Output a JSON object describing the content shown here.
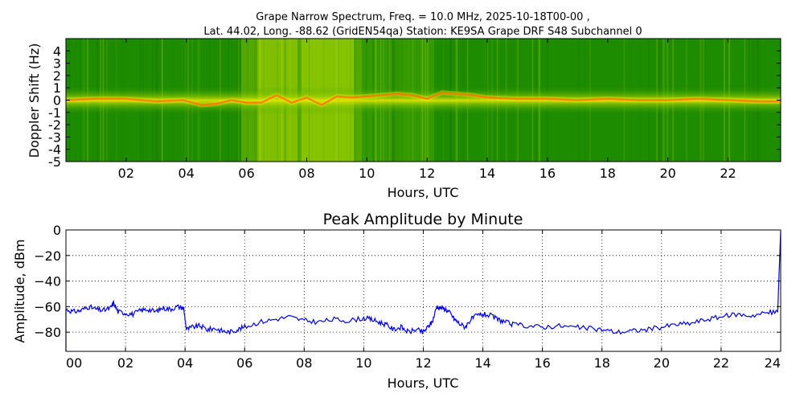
{
  "chart_data": [
    {
      "type": "heatmap",
      "title_line1": "Grape Narrow Spectrum, Freq. = 10.0 MHz, 2025-10-18T00-00 ,",
      "title_line2": "Lat.  44.02, Long. -88.62 (GridEN54qa) Station: KE9SA Grape DRF S48 Subchannel 0",
      "xlabel": "Hours, UTC",
      "ylabel": "Doppler Shift (Hz)",
      "xlim": [
        0,
        23.75
      ],
      "ylim": [
        -5,
        5
      ],
      "xticks": [
        "02",
        "04",
        "06",
        "08",
        "10",
        "12",
        "14",
        "16",
        "18",
        "20",
        "22"
      ],
      "xtick_values": [
        2,
        4,
        6,
        8,
        10,
        12,
        14,
        16,
        18,
        20,
        22
      ],
      "yticks": [
        "4",
        "3",
        "2",
        "1",
        "0",
        "-1",
        "-2",
        "-3",
        "-4",
        "-5"
      ],
      "ytick_values": [
        4,
        3,
        2,
        1,
        0,
        -1,
        -2,
        -3,
        -4,
        -5
      ],
      "colors": {
        "background": "#1a8a00",
        "mid": "#c8e000",
        "peak": "#ff2000"
      },
      "trace": {
        "x": [
          0,
          1,
          2,
          3,
          3.9,
          4.5,
          5,
          5.5,
          6,
          6.5,
          7,
          7.5,
          8,
          8.5,
          9,
          9.5,
          10,
          10.5,
          11,
          11.5,
          12,
          12.5,
          13,
          13.5,
          14,
          15,
          16,
          17,
          18,
          19,
          20,
          21,
          22,
          23,
          23.75
        ],
        "y": [
          0,
          0.1,
          0.1,
          -0.1,
          0,
          -0.4,
          -0.3,
          0,
          -0.2,
          -0.2,
          0.4,
          -0.2,
          0.2,
          -0.4,
          0.3,
          0.2,
          0.3,
          0.4,
          0.5,
          0.4,
          0.1,
          0.6,
          0.5,
          0.4,
          0.2,
          0.1,
          0.1,
          0,
          0.1,
          0,
          0,
          0.1,
          0,
          -0.1,
          -0.1
        ]
      }
    },
    {
      "type": "line",
      "title": "Peak Amplitude by Minute",
      "xlabel": "Hours, UTC",
      "ylabel": "Amplitude, dBm",
      "xlim": [
        0,
        24
      ],
      "ylim": [
        -95,
        0
      ],
      "xticks": [
        "00",
        "02",
        "04",
        "06",
        "08",
        "10",
        "12",
        "14",
        "16",
        "18",
        "20",
        "22",
        "24"
      ],
      "xtick_values": [
        0,
        2,
        4,
        6,
        8,
        10,
        12,
        14,
        16,
        18,
        20,
        22,
        24
      ],
      "yticks": [
        "0",
        "−20",
        "−40",
        "−60",
        "−80"
      ],
      "ytick_values": [
        0,
        -20,
        -40,
        -60,
        -80
      ],
      "grid": true,
      "line_color": "#0000e0",
      "series": [
        {
          "x": [
            0,
            0.25,
            0.5,
            0.75,
            1,
            1.25,
            1.5,
            1.6,
            1.75,
            2,
            2.25,
            2.5,
            2.75,
            3,
            3.25,
            3.5,
            3.75,
            3.95,
            4.05,
            4.25,
            4.5,
            4.75,
            5,
            5.25,
            5.5,
            5.75,
            6,
            6.5,
            7,
            7.5,
            8,
            8.5,
            9,
            9.5,
            10,
            10.25,
            10.5,
            10.75,
            11,
            11.25,
            11.5,
            11.75,
            12,
            12.15,
            12.3,
            12.45,
            12.6,
            12.75,
            12.9,
            13.05,
            13.2,
            13.4,
            13.6,
            13.8,
            14,
            14.25,
            14.5,
            14.75,
            15,
            15.5,
            16,
            16.5,
            17,
            17.5,
            18,
            18.5,
            19,
            19.5,
            20,
            20.5,
            21,
            21.5,
            22,
            22.5,
            23,
            23.5,
            23.9,
            24
          ],
          "y": [
            -62,
            -64,
            -63,
            -60,
            -62,
            -63,
            -61,
            -57,
            -64,
            -65,
            -66,
            -63,
            -62,
            -64,
            -61,
            -62,
            -60,
            -61,
            -78,
            -76,
            -75,
            -78,
            -77,
            -79,
            -80,
            -78,
            -76,
            -72,
            -70,
            -68,
            -71,
            -72,
            -70,
            -71,
            -69,
            -70,
            -72,
            -74,
            -78,
            -76,
            -80,
            -78,
            -80,
            -76,
            -72,
            -60,
            -61,
            -62,
            -65,
            -70,
            -73,
            -76,
            -70,
            -67,
            -66,
            -67,
            -70,
            -72,
            -74,
            -75,
            -76,
            -75,
            -76,
            -77,
            -78,
            -80,
            -79,
            -78,
            -76,
            -74,
            -73,
            -70,
            -68,
            -66,
            -67,
            -65,
            -64,
            -1
          ]
        }
      ]
    }
  ]
}
